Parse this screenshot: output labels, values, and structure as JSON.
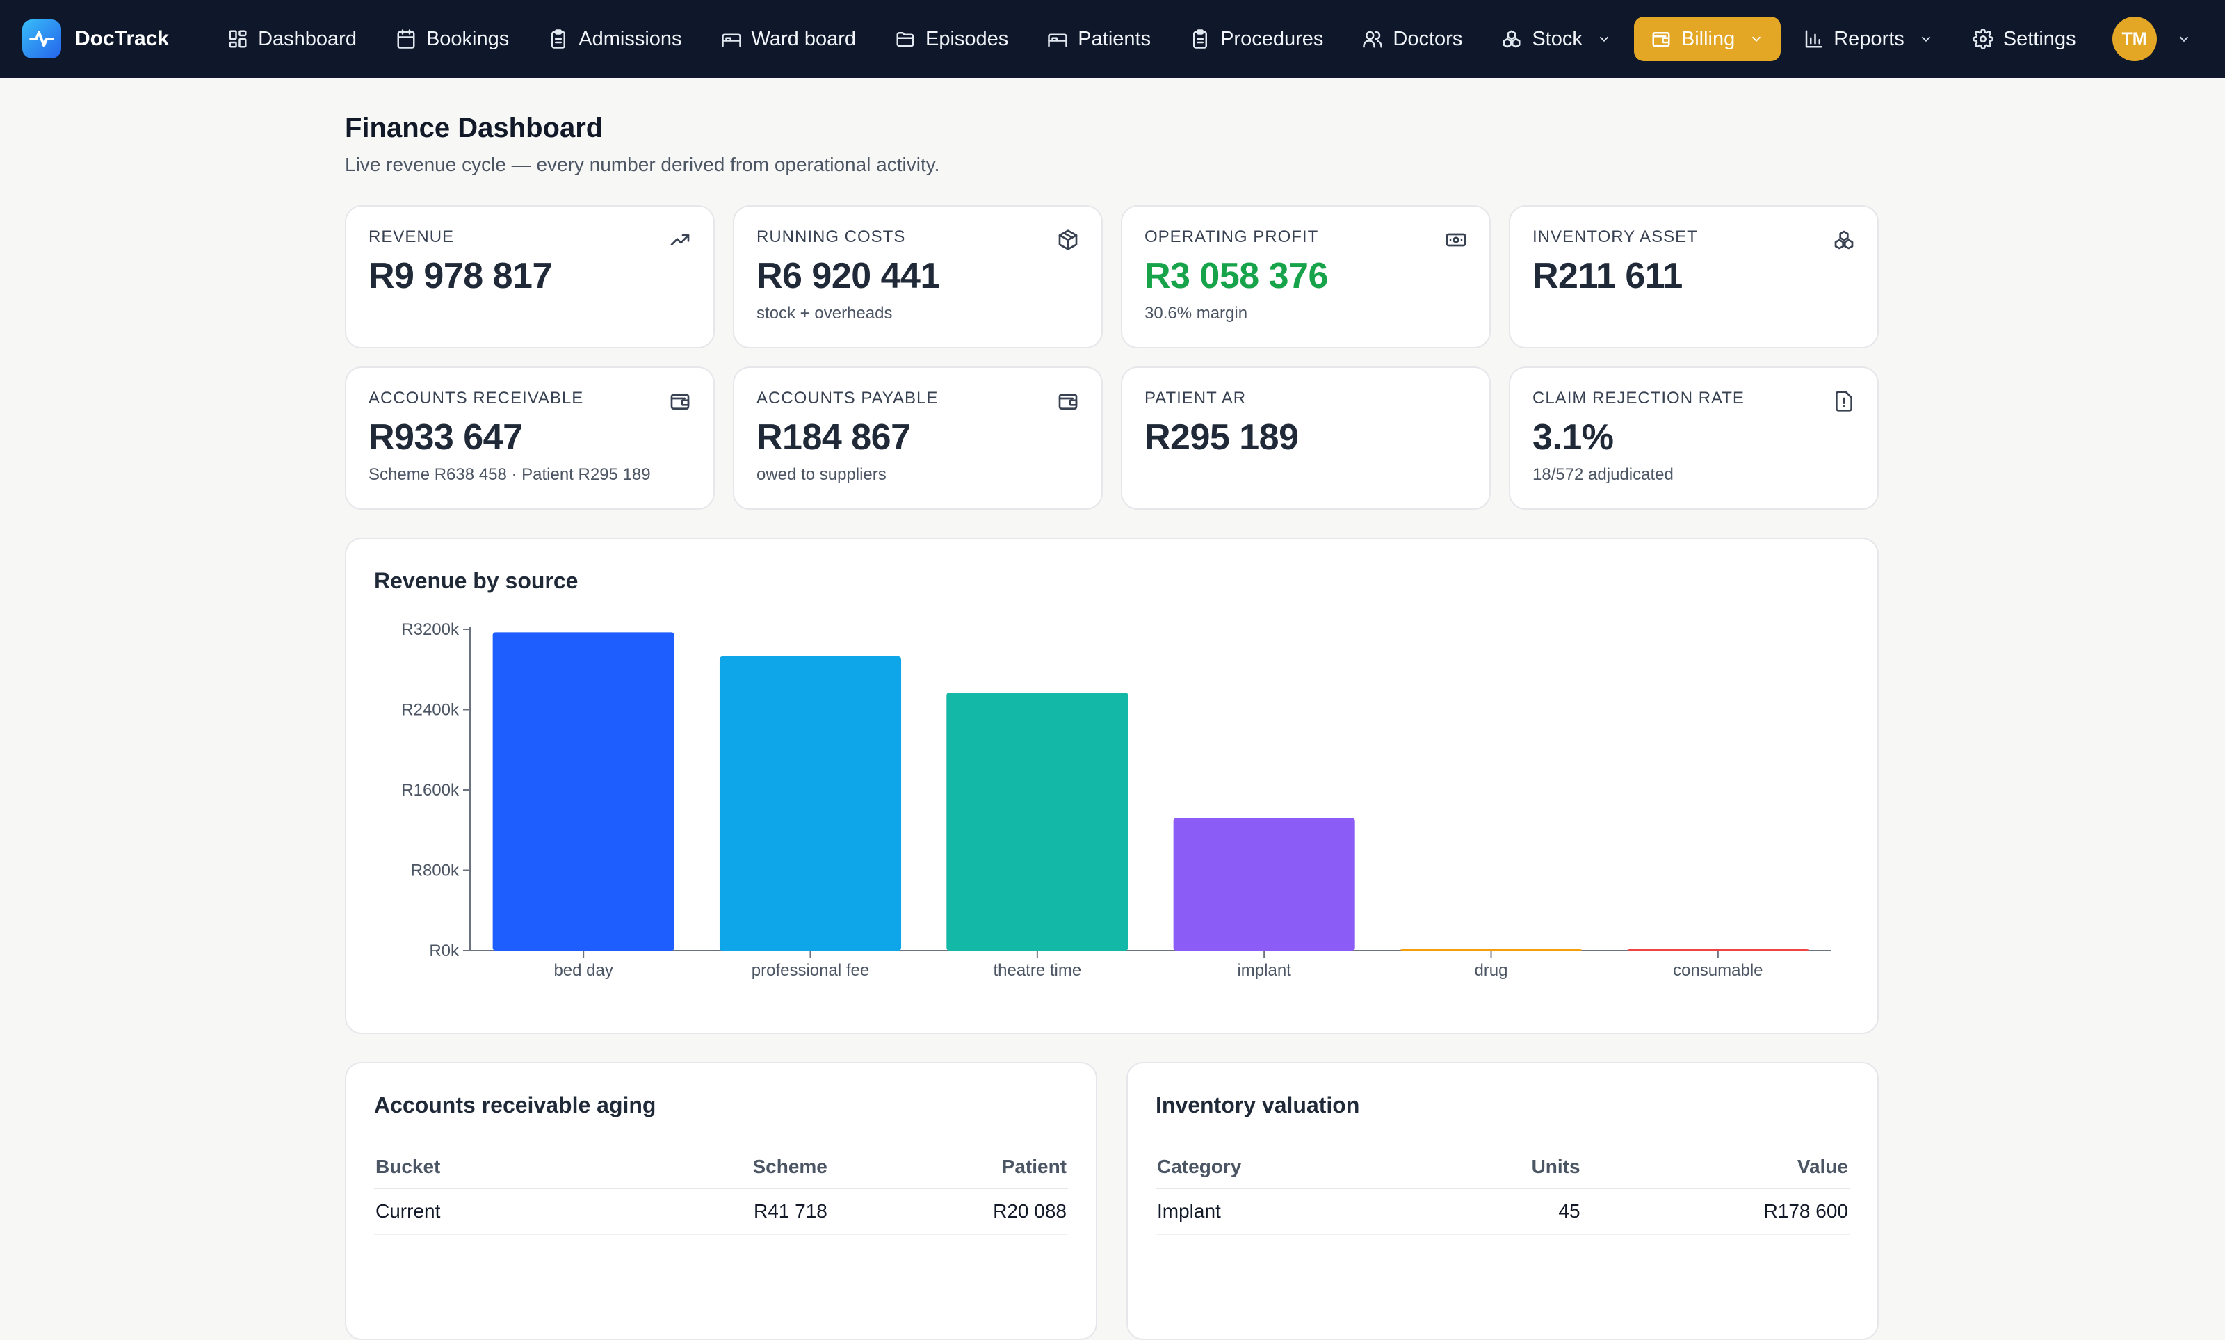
{
  "brand": {
    "name": "DocTrack"
  },
  "nav": {
    "items": [
      {
        "id": "dashboard",
        "label": "Dashboard",
        "icon": "grid-icon"
      },
      {
        "id": "bookings",
        "label": "Bookings",
        "icon": "calendar-icon"
      },
      {
        "id": "admissions",
        "label": "Admissions",
        "icon": "clipboard-icon"
      },
      {
        "id": "ward-board",
        "label": "Ward board",
        "icon": "bed-icon"
      },
      {
        "id": "episodes",
        "label": "Episodes",
        "icon": "folder-icon"
      },
      {
        "id": "patients",
        "label": "Patients",
        "icon": "bed-icon"
      },
      {
        "id": "procedures",
        "label": "Procedures",
        "icon": "clipboard-icon"
      },
      {
        "id": "doctors",
        "label": "Doctors",
        "icon": "users-icon"
      },
      {
        "id": "stock",
        "label": "Stock",
        "icon": "boxes-icon",
        "dropdown": true
      },
      {
        "id": "billing",
        "label": "Billing",
        "icon": "wallet-icon",
        "dropdown": true,
        "active": true
      },
      {
        "id": "reports",
        "label": "Reports",
        "icon": "bar-chart-icon",
        "dropdown": true
      },
      {
        "id": "settings",
        "label": "Settings",
        "icon": "gear-icon"
      }
    ],
    "user_initials": "TM"
  },
  "page": {
    "title": "Finance Dashboard",
    "subtitle": "Live revenue cycle — every number derived from operational activity."
  },
  "kpis": [
    {
      "label": "REVENUE",
      "value": "R9 978 817",
      "note": "",
      "icon": "trending-up-icon"
    },
    {
      "label": "RUNNING COSTS",
      "value": "R6 920 441",
      "note": "stock + overheads",
      "icon": "package-icon"
    },
    {
      "label": "OPERATING PROFIT",
      "value": "R3 058 376",
      "note": "30.6% margin",
      "icon": "banknote-icon",
      "highlight": "#16a34a"
    },
    {
      "label": "INVENTORY ASSET",
      "value": "R211 611",
      "note": "",
      "icon": "boxes-icon"
    },
    {
      "label": "ACCOUNTS RECEIVABLE",
      "value": "R933 647",
      "note": "Scheme R638 458 · Patient R295 189",
      "icon": "wallet-icon"
    },
    {
      "label": "ACCOUNTS PAYABLE",
      "value": "R184 867",
      "note": "owed to suppliers",
      "icon": "wallet-icon"
    },
    {
      "label": "PATIENT AR",
      "value": "R295 189",
      "note": "",
      "icon": ""
    },
    {
      "label": "CLAIM REJECTION RATE",
      "value": "3.1%",
      "note": "18/572 adjudicated",
      "icon": "alert-file-icon"
    }
  ],
  "chart_card": {
    "title": "Revenue by source"
  },
  "chart_data": {
    "type": "bar",
    "title": "Revenue by source",
    "categories": [
      "bed day",
      "professional fee",
      "theatre time",
      "implant",
      "drug",
      "consumable"
    ],
    "values": [
      3170,
      2930,
      2570,
      1320,
      8,
      8
    ],
    "colors": [
      "#1e5eff",
      "#0ea5e9",
      "#14b8a6",
      "#8b5cf6",
      "#f59e0b",
      "#ef4444"
    ],
    "unit_prefix": "R",
    "unit_suffix": "k",
    "yticks": [
      0,
      800,
      1600,
      2400,
      3200
    ],
    "ylim": [
      0,
      3200
    ],
    "xlabel": "",
    "ylabel": "",
    "grid": false
  },
  "ar_aging": {
    "title": "Accounts receivable aging",
    "headers": [
      "Bucket",
      "Scheme",
      "Patient"
    ],
    "rows": [
      [
        "Current",
        "R41 718",
        "R20 088"
      ]
    ]
  },
  "inventory": {
    "title": "Inventory valuation",
    "headers": [
      "Category",
      "Units",
      "Value"
    ],
    "rows": [
      [
        "Implant",
        "45",
        "R178 600"
      ]
    ]
  }
}
